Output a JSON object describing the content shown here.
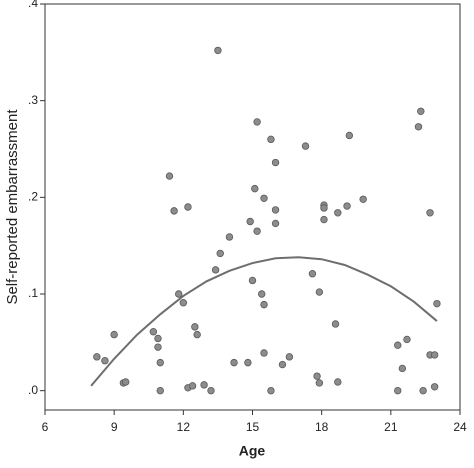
{
  "chart_data": {
    "type": "scatter",
    "xlabel": "Age",
    "ylabel": "Self-reported embarrassment",
    "xlim": [
      6,
      24
    ],
    "xticks": [
      6,
      9,
      12,
      15,
      18,
      21,
      24
    ],
    "ylim": [
      -0.02,
      0.4
    ],
    "yticks": [
      {
        "value": 0,
        "label": ".0"
      },
      {
        "value": 0.1,
        "label": ".1"
      },
      {
        "value": 0.2,
        "label": ".2"
      },
      {
        "value": 0.3,
        "label": ".3"
      },
      {
        "value": 0.4,
        "label": ".4"
      }
    ],
    "series": [
      {
        "type": "scatter",
        "color": "#8c8c8c",
        "x": [
          8.25,
          8.6,
          9.0,
          9.4,
          9.5,
          10.7,
          10.9,
          10.9,
          11.0,
          11.0,
          11.4,
          11.6,
          11.8,
          12.0,
          12.2,
          12.2,
          12.4,
          12.5,
          12.6,
          12.9,
          13.2,
          13.4,
          13.6,
          13.5,
          14.0,
          14.2,
          14.8,
          14.9,
          15.0,
          15.1,
          15.2,
          15.2,
          15.4,
          15.5,
          15.5,
          15.5,
          15.8,
          15.8,
          16.0,
          16.0,
          16.0,
          16.3,
          16.6,
          17.3,
          17.6,
          17.8,
          17.9,
          17.9,
          18.1,
          18.1,
          18.1,
          18.7,
          18.6,
          18.7,
          19.1,
          19.2,
          19.8,
          21.3,
          21.3,
          21.5,
          21.7,
          22.2,
          22.3,
          22.4,
          22.7,
          22.7,
          22.9,
          22.9,
          23.0
        ],
        "values": [
          0.035,
          0.031,
          0.058,
          0.008,
          0.009,
          0.061,
          0.054,
          0.045,
          0.029,
          0.0,
          0.222,
          0.186,
          0.1,
          0.091,
          0.19,
          0.003,
          0.005,
          0.066,
          0.058,
          0.006,
          0.0,
          0.125,
          0.142,
          0.352,
          0.159,
          0.029,
          0.029,
          0.175,
          0.114,
          0.209,
          0.278,
          0.165,
          0.1,
          0.089,
          0.039,
          0.199,
          0.26,
          0.0,
          0.236,
          0.187,
          0.173,
          0.027,
          0.035,
          0.253,
          0.121,
          0.015,
          0.008,
          0.102,
          0.192,
          0.189,
          0.177,
          0.184,
          0.069,
          0.009,
          0.191,
          0.264,
          0.198,
          0.047,
          0.0,
          0.023,
          0.053,
          0.273,
          0.289,
          0.0,
          0.037,
          0.184,
          0.037,
          0.004,
          0.09
        ]
      },
      {
        "type": "line",
        "color": "#6e6e6e",
        "x": [
          8,
          9,
          10,
          11,
          12,
          13,
          14,
          15,
          16,
          17,
          18,
          19,
          20,
          21,
          22,
          23
        ],
        "values": [
          0.005,
          0.033,
          0.058,
          0.079,
          0.098,
          0.113,
          0.124,
          0.132,
          0.137,
          0.138,
          0.136,
          0.13,
          0.12,
          0.108,
          0.092,
          0.072
        ]
      }
    ]
  }
}
